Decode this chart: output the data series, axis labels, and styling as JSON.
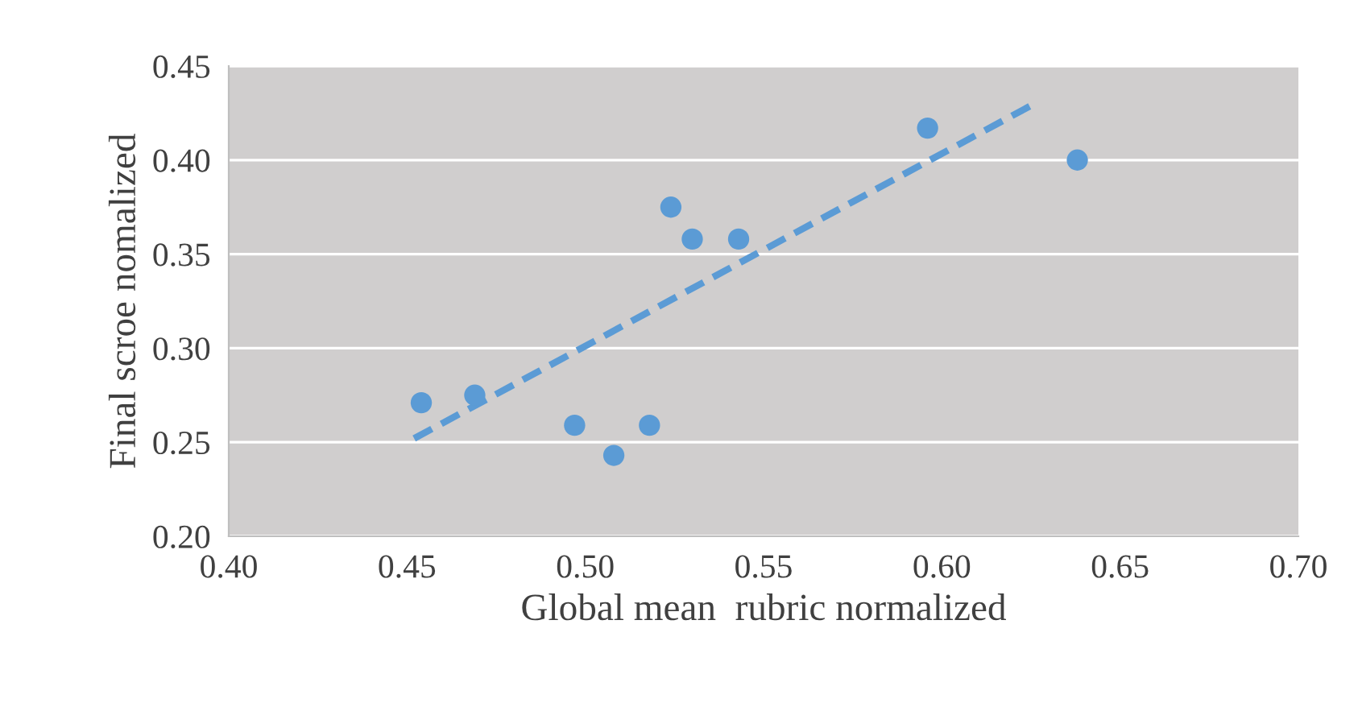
{
  "chart_data": {
    "type": "scatter",
    "xlabel": "Global mean  rubric normalized",
    "ylabel": "Final scroe nomalized",
    "series": [
      {
        "color": "#5b9bd5",
        "x": [
          0.454,
          0.469,
          0.497,
          0.508,
          0.518,
          0.524,
          0.53,
          0.543,
          0.596,
          0.638
        ],
        "values": [
          0.271,
          0.275,
          0.259,
          0.243,
          0.259,
          0.375,
          0.358,
          0.358,
          0.417,
          0.4
        ],
        "marker": "circle"
      },
      {
        "type": "line",
        "color": "#5b9bd5",
        "x": [
          0.452,
          0.626
        ],
        "values": [
          0.252,
          0.43
        ],
        "line_style": "dashed",
        "marker": "none"
      }
    ],
    "xlim": [
      0.4,
      0.7
    ],
    "xticks": [
      {
        "value": 0.4,
        "label": "0.40"
      },
      {
        "value": 0.45,
        "label": "0.45"
      },
      {
        "value": 0.5,
        "label": "0.50"
      },
      {
        "value": 0.55,
        "label": "0.55"
      },
      {
        "value": 0.6,
        "label": "0.60"
      },
      {
        "value": 0.65,
        "label": "0.65"
      },
      {
        "value": 0.7,
        "label": "0.70"
      }
    ],
    "ylim": [
      0.2,
      0.45
    ],
    "yticks": [
      {
        "value": 0.2,
        "label": "0.20"
      },
      {
        "value": 0.25,
        "label": "0.25"
      },
      {
        "value": 0.3,
        "label": "0.30"
      },
      {
        "value": 0.35,
        "label": "0.35"
      },
      {
        "value": 0.4,
        "label": "0.40"
      },
      {
        "value": 0.45,
        "label": "0.45"
      }
    ],
    "grid": "y",
    "legend": false
  }
}
